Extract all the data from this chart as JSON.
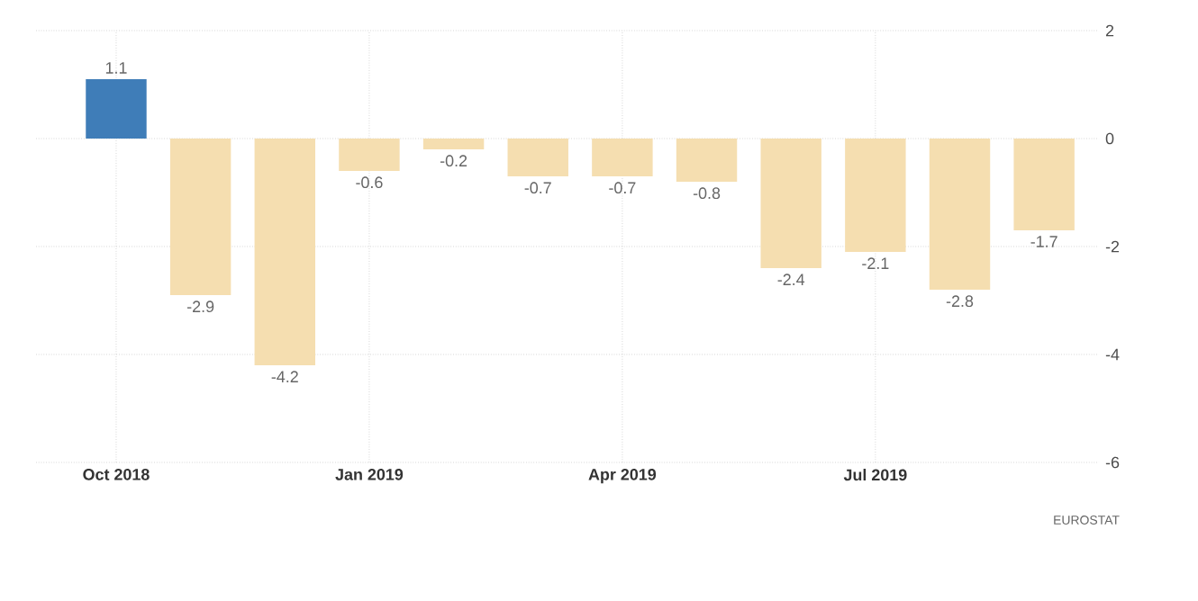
{
  "chart_data": {
    "type": "bar",
    "categories": [
      "Oct 2018",
      null,
      null,
      "Jan 2019",
      null,
      null,
      "Apr 2019",
      null,
      null,
      "Jul 2019",
      null,
      null
    ],
    "values": [
      1.1,
      -2.9,
      -4.2,
      -0.6,
      -0.2,
      -0.7,
      -0.7,
      -0.8,
      -2.4,
      -2.1,
      -2.8,
      -1.7
    ],
    "colors": [
      "#3f7db8",
      "#f5deb0",
      "#f5deb0",
      "#f5deb0",
      "#f5deb0",
      "#f5deb0",
      "#f5deb0",
      "#f5deb0",
      "#f5deb0",
      "#f5deb0",
      "#f5deb0",
      "#f5deb0"
    ],
    "ylim": [
      -6,
      2
    ],
    "yticks": [
      -6,
      -4,
      -2,
      0,
      2
    ],
    "grid": true,
    "data_labels": true,
    "annotations": [
      "EUROSTAT"
    ]
  }
}
